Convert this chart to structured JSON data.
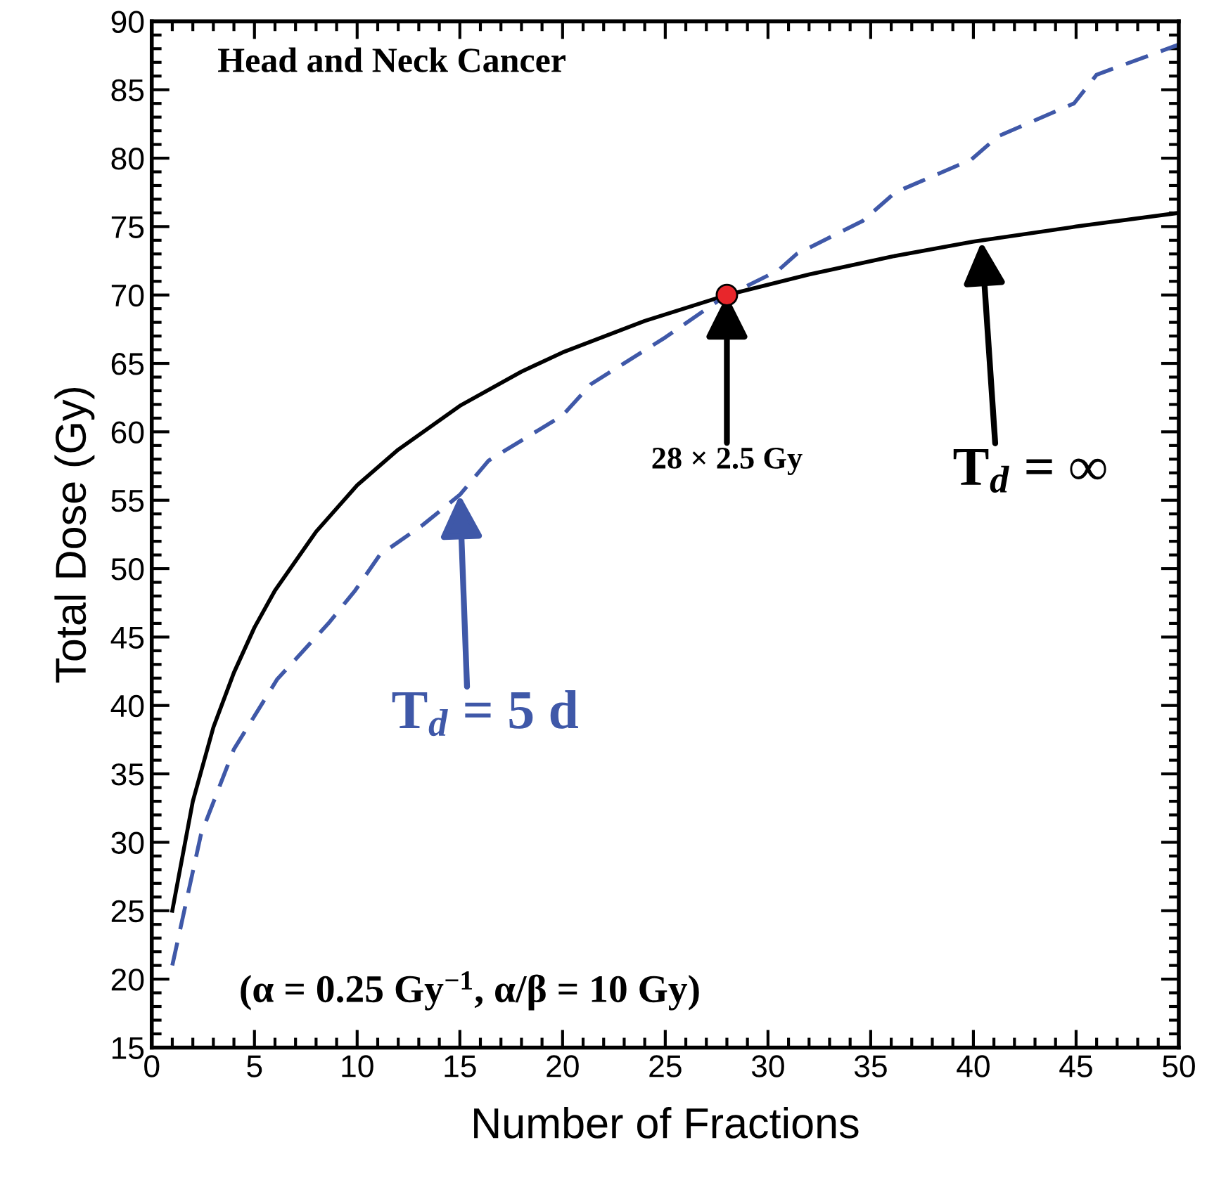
{
  "chart_data": {
    "type": "line",
    "xlabel": "Number of Fractions",
    "ylabel": "Total Dose (Gy)",
    "xlim": [
      0,
      50
    ],
    "ylim": [
      15,
      90
    ],
    "xticks": [
      0,
      5,
      10,
      15,
      20,
      25,
      30,
      35,
      40,
      45,
      50
    ],
    "yticks": [
      15,
      20,
      25,
      30,
      35,
      40,
      45,
      50,
      55,
      60,
      65,
      70,
      75,
      80,
      85,
      90
    ],
    "grid": false,
    "legend": false,
    "series": [
      {
        "color": "#000000",
        "line_style": "solid",
        "marker": "none",
        "x": [
          1,
          2,
          3,
          4,
          5,
          6,
          8,
          10,
          12,
          15,
          18,
          20,
          24,
          28,
          32,
          36,
          40,
          45,
          50
        ],
        "values": [
          25,
          33,
          38.4,
          42.4,
          45.7,
          48.4,
          52.7,
          56.1,
          58.7,
          61.9,
          64.4,
          65.8,
          68.1,
          70,
          71.5,
          72.8,
          73.9,
          75,
          76
        ]
      },
      {
        "color": "#3f58a8",
        "line_style": "dashed",
        "marker": "none",
        "x": [
          1,
          1.7,
          2.4,
          4,
          6.1,
          8.6,
          9.9,
          11.1,
          13.2,
          15,
          16.4,
          20,
          21.4,
          25,
          27.7,
          30.5,
          31.4,
          34.6,
          36.2,
          39.9,
          41.2,
          44.9,
          46,
          50
        ],
        "values": [
          21,
          25.8,
          30.6,
          36.8,
          41.9,
          46,
          48.4,
          51,
          53.2,
          55.4,
          57.9,
          61.2,
          63.5,
          66.9,
          69.7,
          71.8,
          73,
          75.4,
          77.5,
          79.9,
          81.6,
          84,
          86.1,
          88.3
        ]
      },
      {
        "type": "scatter",
        "color": "#e8262b",
        "marker": "circle",
        "x": [
          28
        ],
        "values": [
          70
        ]
      }
    ],
    "annotations": [
      "Head and Neck Cancer",
      {
        "text": "28 × 2.5 Gy",
        "x": 28,
        "y": 70
      },
      {
        "text": "T$_{d}$ = ∞",
        "x": 40.4,
        "y": 73.9
      },
      {
        "text": "T$_{d}$ = 5 d",
        "x": 15,
        "y": 55.4
      },
      "(α = 0.25 Gy$^{−1}$, α/β = 10 Gy)"
    ]
  }
}
